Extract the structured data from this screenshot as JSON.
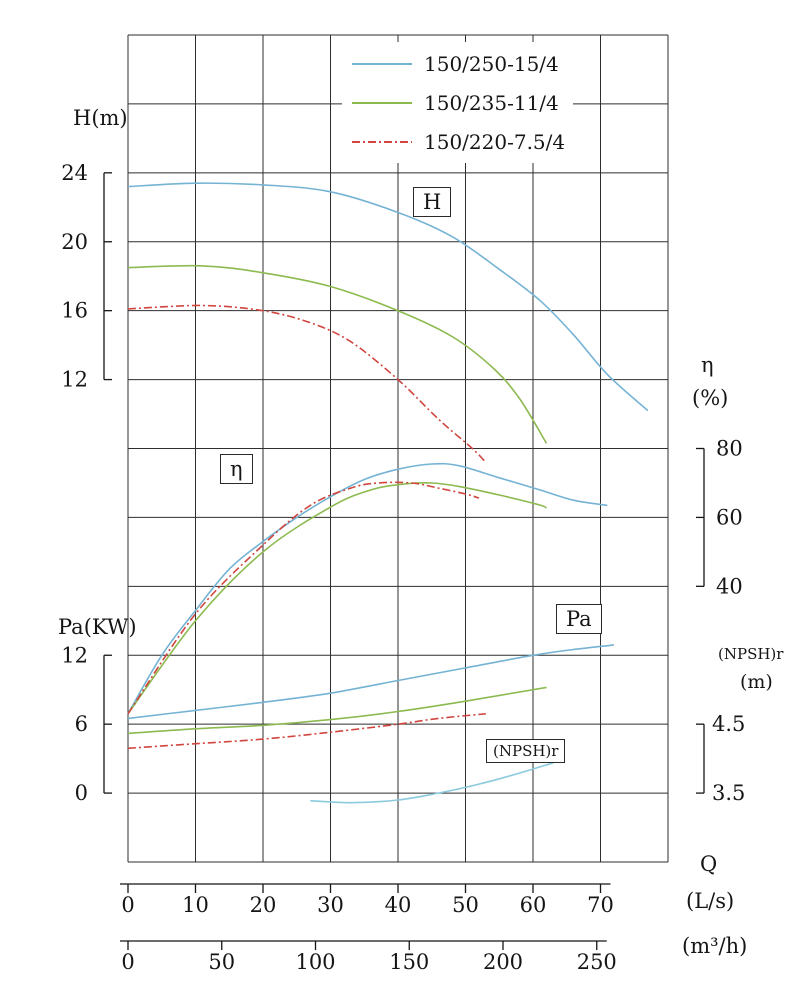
{
  "chart_data": {
    "type": "line",
    "legend": [
      {
        "label": "150/250-15/4",
        "color": "#74b3d4",
        "style": "solid"
      },
      {
        "label": "150/235-11/4",
        "color": "#8cba4f",
        "style": "solid"
      },
      {
        "label": "150/220-7.5/4",
        "color": "#d0453e",
        "style": "dashdot"
      }
    ],
    "x_axis": {
      "label": "Q",
      "units": [
        {
          "label": "(L/s)",
          "ticks": [
            0,
            10,
            20,
            30,
            40,
            50,
            60,
            70
          ]
        },
        {
          "label": "(m³/h)",
          "ticks": [
            0,
            50,
            100,
            150,
            200,
            250
          ]
        }
      ]
    },
    "y_axes": {
      "H": {
        "label": "H(m)",
        "ticks": [
          24,
          20,
          16,
          12
        ]
      },
      "Pa": {
        "label": "Pa(KW)",
        "ticks": [
          12,
          6,
          0
        ]
      },
      "eta": {
        "label": "η",
        "unit": "(%)",
        "ticks": [
          80,
          60,
          40
        ]
      },
      "npshr": {
        "label": "(NPSH)r",
        "unit": "(m)",
        "ticks": [
          4.5,
          3.5
        ]
      }
    },
    "curve_labels": {
      "H": "H",
      "eta": "η",
      "Pa": "Pa",
      "npshr": "(NPSH)r"
    },
    "series": {
      "H": [
        {
          "name": "150/250-15/4",
          "color": "#74b3d4",
          "style": "solid",
          "points": [
            [
              0,
              23.2
            ],
            [
              10,
              23.4
            ],
            [
              20,
              23.3
            ],
            [
              30,
              22.9
            ],
            [
              40,
              21.7
            ],
            [
              48,
              20.3
            ],
            [
              55,
              18.4
            ],
            [
              61,
              16.6
            ],
            [
              66,
              14.6
            ],
            [
              71,
              12.3
            ],
            [
              77,
              10.2
            ]
          ]
        },
        {
          "name": "150/235-11/4",
          "color": "#8cba4f",
          "style": "solid",
          "points": [
            [
              0,
              18.5
            ],
            [
              11,
              18.6
            ],
            [
              20,
              18.2
            ],
            [
              30,
              17.4
            ],
            [
              40,
              16.0
            ],
            [
              48,
              14.5
            ],
            [
              54,
              12.7
            ],
            [
              58,
              10.9
            ],
            [
              62,
              8.3
            ]
          ]
        },
        {
          "name": "150/220-7.5/4",
          "color": "#d0453e",
          "style": "dashdot",
          "points": [
            [
              0,
              16.1
            ],
            [
              11,
              16.3
            ],
            [
              20,
              16.0
            ],
            [
              27,
              15.3
            ],
            [
              33,
              14.2
            ],
            [
              40,
              12.0
            ],
            [
              46,
              9.7
            ],
            [
              51,
              8.0
            ],
            [
              53,
              7.2
            ]
          ]
        }
      ],
      "eta": [
        {
          "name": "150/250-15/4",
          "color": "#74b3d4",
          "style": "solid",
          "points": [
            [
              0,
              3
            ],
            [
              5,
              20
            ],
            [
              10,
              33
            ],
            [
              15,
              45
            ],
            [
              20,
              53
            ],
            [
              25,
              60
            ],
            [
              30,
              66
            ],
            [
              35,
              71
            ],
            [
              40,
              74
            ],
            [
              45,
              75.5
            ],
            [
              49,
              75
            ],
            [
              55,
              71.5
            ],
            [
              61,
              68
            ],
            [
              66,
              65
            ],
            [
              71,
              63.5
            ]
          ]
        },
        {
          "name": "150/235-11/4",
          "color": "#8cba4f",
          "style": "solid",
          "points": [
            [
              0,
              3
            ],
            [
              10,
              30
            ],
            [
              20,
              50
            ],
            [
              30,
              63
            ],
            [
              36,
              68
            ],
            [
              41,
              69.7
            ],
            [
              45,
              70
            ],
            [
              49,
              69
            ],
            [
              55,
              66.5
            ],
            [
              61,
              63.6
            ],
            [
              62,
              62.7
            ]
          ]
        },
        {
          "name": "150/220-7.5/4",
          "color": "#d0453e",
          "style": "dashdot",
          "points": [
            [
              0,
              3
            ],
            [
              10,
              32
            ],
            [
              20,
              52
            ],
            [
              27,
              63.5
            ],
            [
              33,
              68.5
            ],
            [
              37,
              70
            ],
            [
              42,
              70
            ],
            [
              46,
              68.5
            ],
            [
              50,
              66.8
            ],
            [
              52,
              65.6
            ]
          ]
        }
      ],
      "Pa": [
        {
          "name": "150/250-15/4",
          "color": "#74b3d4",
          "style": "solid",
          "points": [
            [
              0,
              6.5
            ],
            [
              10,
              7.2
            ],
            [
              20,
              7.9
            ],
            [
              30,
              8.7
            ],
            [
              40,
              9.8
            ],
            [
              50,
              10.9
            ],
            [
              60,
              12.0
            ],
            [
              66,
              12.5
            ],
            [
              72,
              12.9
            ]
          ]
        },
        {
          "name": "150/235-11/4",
          "color": "#8cba4f",
          "style": "solid",
          "points": [
            [
              0,
              5.2
            ],
            [
              10,
              5.6
            ],
            [
              20,
              5.9
            ],
            [
              30,
              6.4
            ],
            [
              40,
              7.1
            ],
            [
              50,
              8.0
            ],
            [
              58,
              8.8
            ],
            [
              62,
              9.2
            ]
          ]
        },
        {
          "name": "150/220-7.5/4",
          "color": "#d0453e",
          "style": "dashdot",
          "points": [
            [
              0,
              3.9
            ],
            [
              10,
              4.3
            ],
            [
              20,
              4.7
            ],
            [
              30,
              5.3
            ],
            [
              40,
              6.0
            ],
            [
              46,
              6.5
            ],
            [
              53,
              6.9
            ]
          ]
        }
      ],
      "npshr": [
        {
          "name": "(NPSH)r",
          "color": "#8ccade",
          "style": "solid",
          "points": [
            [
              27,
              3.39
            ],
            [
              33,
              3.36
            ],
            [
              40,
              3.4
            ],
            [
              46,
              3.5
            ],
            [
              52,
              3.63
            ],
            [
              58,
              3.79
            ],
            [
              63,
              3.94
            ]
          ]
        }
      ]
    }
  }
}
